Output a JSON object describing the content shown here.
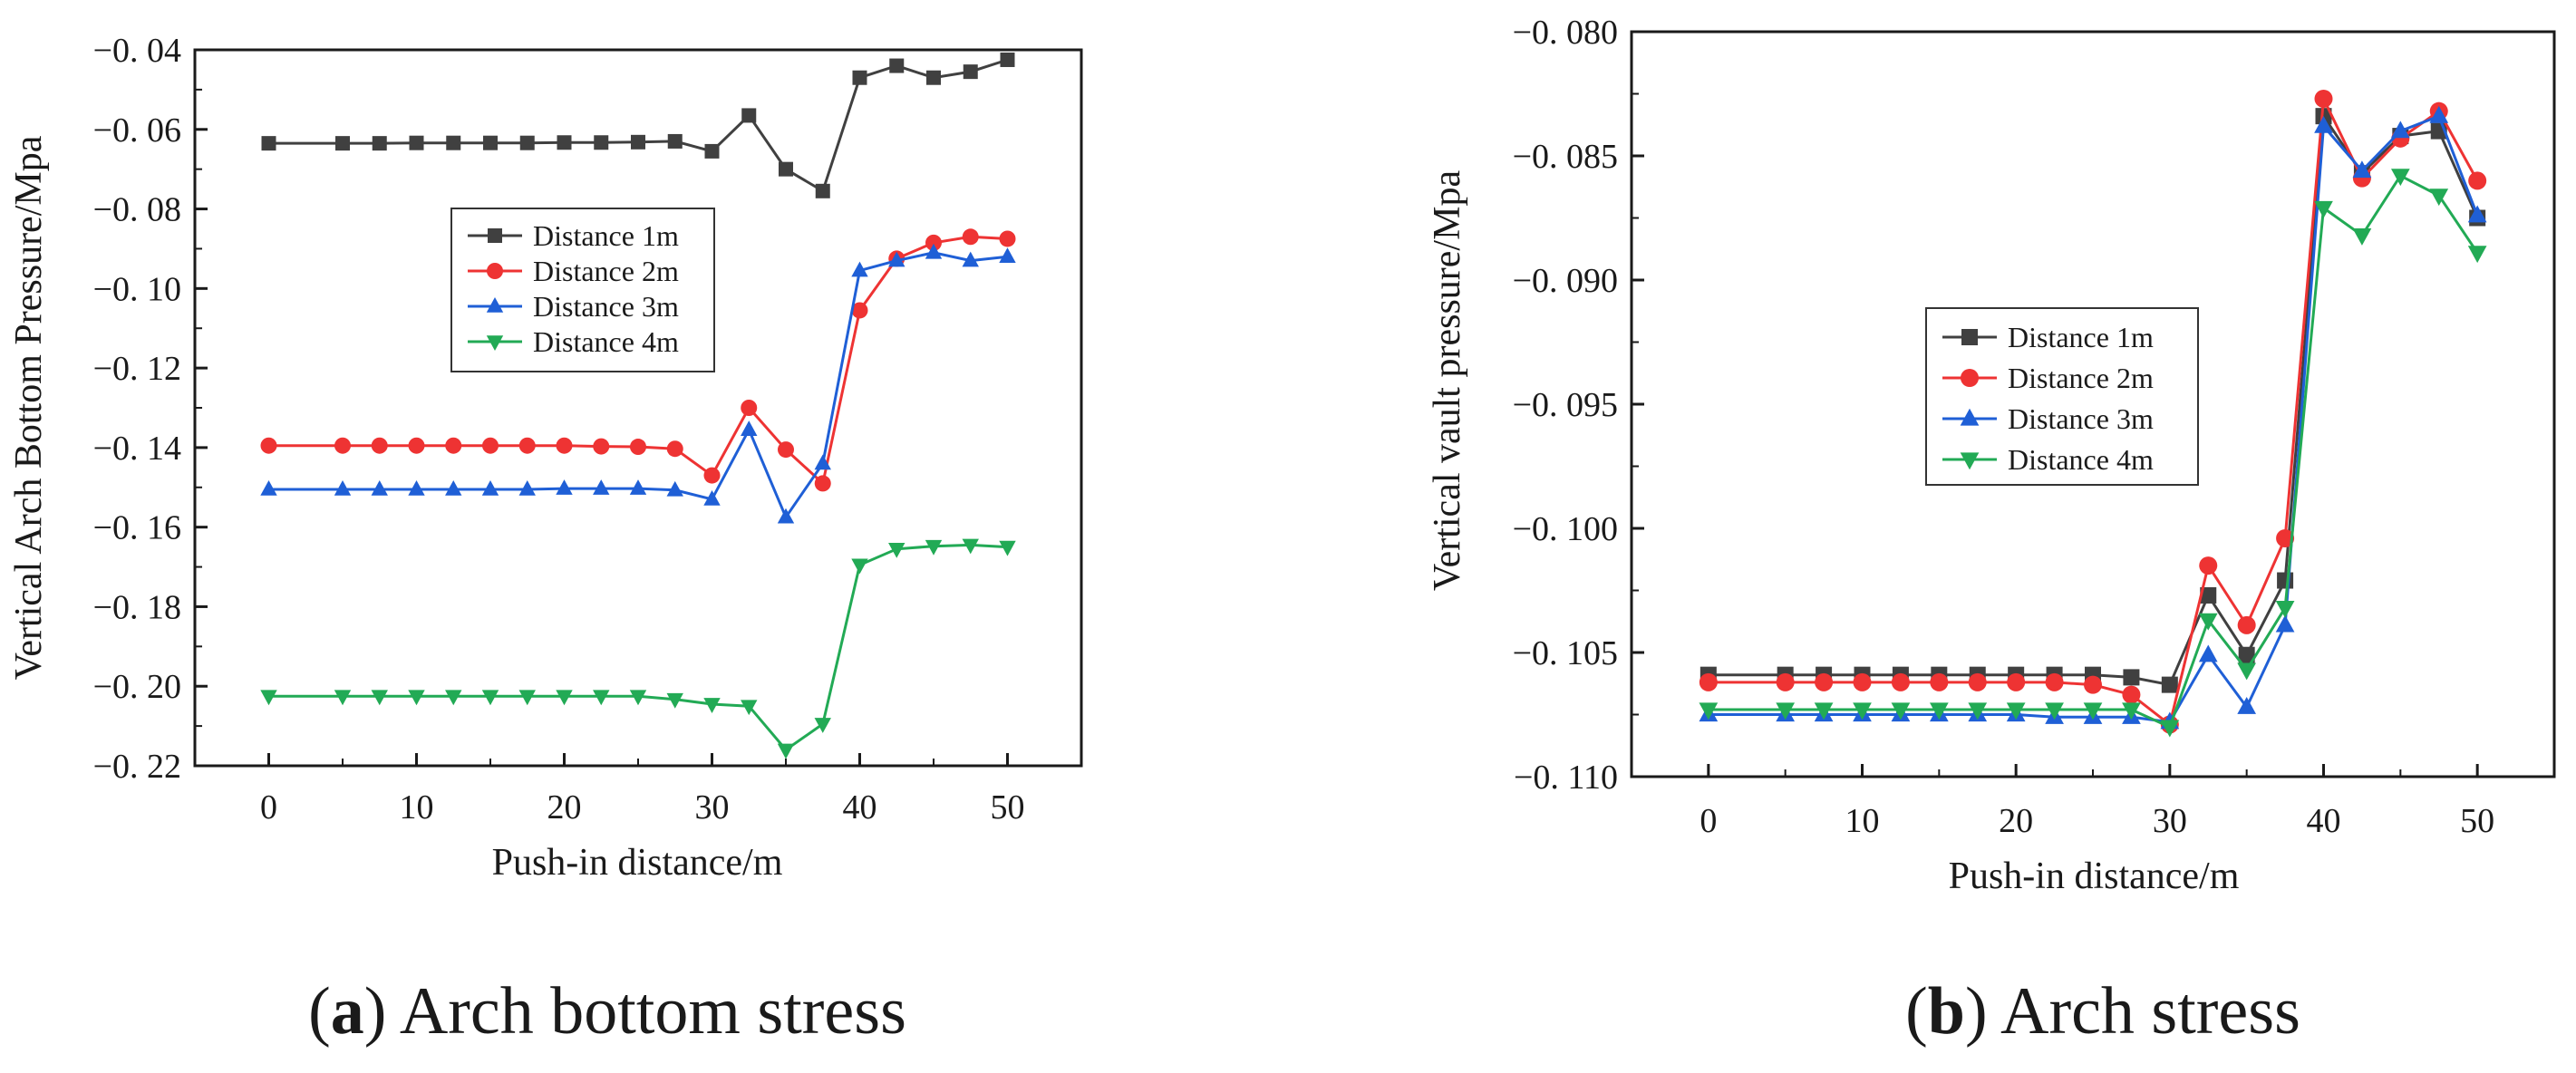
{
  "chart_data": [
    {
      "type": "line",
      "title": "",
      "xlabel": "Push-in distance/m",
      "ylabel": "Vertical Arch Bottom Pressure/Mpa",
      "xlim": [
        -5,
        55
      ],
      "ylim": [
        -0.22,
        -0.04
      ],
      "xticks": [
        0,
        10,
        20,
        30,
        40,
        50
      ],
      "yticks": [
        -0.22,
        -0.2,
        -0.18,
        -0.16,
        -0.14,
        -0.12,
        -0.1,
        -0.08,
        -0.06,
        -0.04
      ],
      "xtick_labels": [
        "0",
        "10",
        "20",
        "30",
        "40",
        "50"
      ],
      "ytick_labels": [
        "−0. 22",
        "−0. 20",
        "−0. 18",
        "−0. 16",
        "−0. 14",
        "−0. 12",
        "−0. 10",
        "−0. 08",
        "−0. 06",
        "−0. 04"
      ],
      "legend_position": "center-left",
      "x": [
        0,
        5,
        7.5,
        10,
        12.5,
        15,
        17.5,
        20,
        22.5,
        25,
        27.5,
        30,
        32.5,
        35,
        37.5,
        40,
        42.5,
        45,
        47.5,
        50
      ],
      "series": [
        {
          "name": "Distance 1m",
          "color": "#404040",
          "marker": "square",
          "values": [
            -0.0635,
            -0.0635,
            -0.0635,
            -0.0634,
            -0.0634,
            -0.0634,
            -0.0634,
            -0.0633,
            -0.0633,
            -0.0632,
            -0.063,
            -0.0655,
            -0.0565,
            -0.07,
            -0.0755,
            -0.047,
            -0.044,
            -0.047,
            -0.0455,
            -0.0425
          ]
        },
        {
          "name": "Distance 2m",
          "color": "#ee3333",
          "marker": "circle",
          "values": [
            -0.1395,
            -0.1395,
            -0.1395,
            -0.1395,
            -0.1395,
            -0.1395,
            -0.1395,
            -0.1395,
            -0.1397,
            -0.1398,
            -0.1403,
            -0.147,
            -0.13,
            -0.1405,
            -0.149,
            -0.1055,
            -0.0925,
            -0.0885,
            -0.087,
            -0.0875
          ]
        },
        {
          "name": "Distance 3m",
          "color": "#1f5fd6",
          "marker": "triangle-up",
          "values": [
            -0.1505,
            -0.1505,
            -0.1505,
            -0.1505,
            -0.1505,
            -0.1505,
            -0.1505,
            -0.1503,
            -0.1503,
            -0.1503,
            -0.1507,
            -0.153,
            -0.1355,
            -0.1575,
            -0.144,
            -0.0955,
            -0.093,
            -0.091,
            -0.093,
            -0.092
          ]
        },
        {
          "name": "Distance 4m",
          "color": "#22aa55",
          "marker": "triangle-down",
          "values": [
            -0.2025,
            -0.2025,
            -0.2025,
            -0.2025,
            -0.2025,
            -0.2025,
            -0.2025,
            -0.2025,
            -0.2025,
            -0.2025,
            -0.2033,
            -0.2045,
            -0.205,
            -0.216,
            -0.2095,
            -0.1695,
            -0.1655,
            -0.1648,
            -0.1645,
            -0.165
          ]
        }
      ],
      "caption_letter": "a",
      "caption_text": "Arch bottom stress"
    },
    {
      "type": "line",
      "title": "",
      "xlabel": "Push-in distance/m",
      "ylabel": "Vertical vault pressure/Mpa",
      "xlim": [
        -5,
        55
      ],
      "ylim": [
        -0.11,
        -0.08
      ],
      "xticks": [
        0,
        10,
        20,
        30,
        40,
        50
      ],
      "yticks": [
        -0.11,
        -0.105,
        -0.1,
        -0.095,
        -0.09,
        -0.085,
        -0.08
      ],
      "xtick_labels": [
        "0",
        "10",
        "20",
        "30",
        "40",
        "50"
      ],
      "ytick_labels": [
        "−0. 110",
        "−0. 105",
        "−0. 100",
        "−0. 095",
        "−0. 090",
        "−0. 085",
        "−0. 080"
      ],
      "legend_position": "center-left",
      "x": [
        0,
        5,
        7.5,
        10,
        12.5,
        15,
        17.5,
        20,
        22.5,
        25,
        27.5,
        30,
        32.5,
        35,
        37.5,
        40,
        42.5,
        45,
        47.5,
        50
      ],
      "series": [
        {
          "name": "Distance 1m",
          "color": "#404040",
          "marker": "square",
          "values": [
            -0.1059,
            -0.1059,
            -0.1059,
            -0.1059,
            -0.1059,
            -0.1059,
            -0.1059,
            -0.1059,
            -0.1059,
            -0.1059,
            -0.106,
            -0.1063,
            -0.1027,
            -0.1051,
            -0.1021,
            -0.0834,
            -0.0857,
            -0.0842,
            -0.084,
            -0.0875
          ]
        },
        {
          "name": "Distance 2m",
          "color": "#ee3333",
          "marker": "circle",
          "values": [
            -0.1062,
            -0.1062,
            -0.1062,
            -0.1062,
            -0.1062,
            -0.1062,
            -0.1062,
            -0.1062,
            -0.1062,
            -0.1063,
            -0.1067,
            -0.1079,
            -0.1015,
            -0.1039,
            -0.1004,
            -0.0827,
            -0.0859,
            -0.0843,
            -0.0832,
            -0.086
          ]
        },
        {
          "name": "Distance 3m",
          "color": "#1f5fd6",
          "marker": "triangle-up",
          "values": [
            -0.1075,
            -0.1075,
            -0.1075,
            -0.1075,
            -0.1075,
            -0.1075,
            -0.1075,
            -0.1075,
            -0.1076,
            -0.1076,
            -0.1076,
            -0.1078,
            -0.1051,
            -0.1072,
            -0.1039,
            -0.0838,
            -0.0856,
            -0.084,
            -0.0834,
            -0.0874
          ]
        },
        {
          "name": "Distance 4m",
          "color": "#22aa55",
          "marker": "triangle-down",
          "values": [
            -0.1073,
            -0.1073,
            -0.1073,
            -0.1073,
            -0.1073,
            -0.1073,
            -0.1073,
            -0.1073,
            -0.1073,
            -0.1073,
            -0.1073,
            -0.108,
            -0.1037,
            -0.1057,
            -0.1032,
            -0.0871,
            -0.0882,
            -0.0858,
            -0.0866,
            -0.0889
          ]
        }
      ],
      "caption_letter": "b",
      "caption_text": "Arch stress"
    }
  ]
}
